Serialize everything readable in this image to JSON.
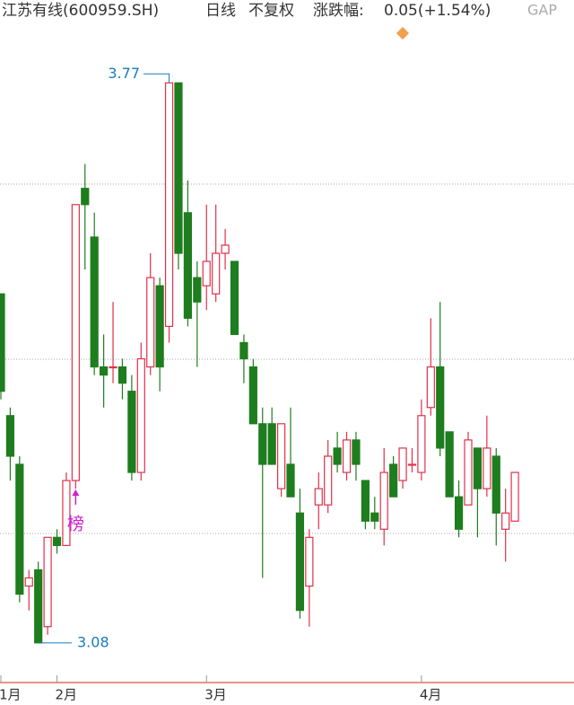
{
  "chart_data": {
    "type": "candlestick",
    "title": "江苏有线(600959.SH)",
    "period": "日线",
    "adjust": "不复权",
    "change_label": "涨跌幅:",
    "change": "0.05(+1.54%)",
    "gap_button": "GAP",
    "annotation": "榜",
    "ylim": [
      3.03,
      3.84
    ],
    "up_color": "#e0304a",
    "down_color": "#1e7d1e",
    "label_color": "#1a7abf",
    "categories": [
      "1月",
      null,
      null,
      null,
      null,
      null,
      "2月",
      null,
      null,
      null,
      null,
      null,
      null,
      null,
      null,
      null,
      null,
      null,
      null,
      null,
      null,
      null,
      "3月",
      null,
      null,
      null,
      null,
      null,
      null,
      null,
      null,
      null,
      null,
      null,
      null,
      null,
      null,
      null,
      null,
      null,
      null,
      null,
      null,
      null,
      null,
      "4月",
      null,
      null,
      null,
      null,
      null,
      null,
      null,
      null,
      null,
      null
    ],
    "open": [
      3.51,
      3.36,
      3.3,
      3.15,
      3.17,
      3.1,
      3.21,
      3.2,
      3.28,
      3.64,
      3.58,
      3.42,
      3.42,
      3.42,
      3.39,
      3.29,
      3.42,
      3.52,
      3.47,
      3.77,
      3.61,
      3.53,
      3.52,
      3.51,
      3.56,
      3.55,
      3.45,
      3.42,
      3.35,
      3.35,
      3.27,
      3.3,
      3.24,
      3.15,
      3.25,
      3.25,
      3.32,
      3.29,
      3.33,
      3.28,
      3.24,
      3.22,
      3.3,
      3.28,
      3.3,
      3.29,
      3.37,
      3.42,
      3.34,
      3.26,
      3.25,
      3.32,
      3.27,
      3.31,
      3.22,
      3.23
    ],
    "high": [
      3.51,
      3.37,
      3.31,
      3.17,
      3.18,
      3.21,
      3.22,
      3.29,
      3.62,
      3.67,
      3.61,
      3.46,
      3.5,
      3.43,
      3.41,
      3.45,
      3.56,
      3.53,
      3.77,
      3.77,
      3.65,
      3.55,
      3.62,
      3.62,
      3.59,
      3.55,
      3.46,
      3.43,
      3.37,
      3.37,
      3.35,
      3.37,
      3.27,
      3.22,
      3.29,
      3.33,
      3.34,
      3.34,
      3.34,
      3.28,
      3.26,
      3.32,
      3.31,
      3.32,
      3.32,
      3.38,
      3.48,
      3.5,
      3.34,
      3.28,
      3.34,
      3.32,
      3.36,
      3.32,
      3.27,
      3.29
    ],
    "low": [
      3.38,
      3.28,
      3.13,
      3.12,
      3.08,
      3.09,
      3.19,
      3.2,
      3.27,
      3.54,
      3.41,
      3.37,
      3.4,
      3.38,
      3.28,
      3.28,
      3.41,
      3.39,
      3.45,
      3.54,
      3.47,
      3.42,
      3.49,
      3.5,
      3.54,
      3.46,
      3.4,
      3.35,
      3.16,
      3.3,
      3.26,
      3.26,
      3.11,
      3.1,
      3.22,
      3.24,
      3.29,
      3.28,
      3.28,
      3.22,
      3.22,
      3.2,
      3.26,
      3.27,
      3.29,
      3.28,
      3.36,
      3.31,
      3.26,
      3.21,
      3.25,
      3.21,
      3.26,
      3.2,
      3.18,
      3.23
    ],
    "close": [
      3.39,
      3.31,
      3.14,
      3.16,
      3.08,
      3.21,
      3.2,
      3.28,
      3.62,
      3.62,
      3.42,
      3.41,
      3.42,
      3.4,
      3.29,
      3.43,
      3.53,
      3.42,
      3.77,
      3.56,
      3.48,
      3.5,
      3.55,
      3.56,
      3.57,
      3.46,
      3.43,
      3.35,
      3.3,
      3.3,
      3.35,
      3.26,
      3.12,
      3.21,
      3.27,
      3.31,
      3.3,
      3.33,
      3.3,
      3.23,
      3.23,
      3.29,
      3.26,
      3.32,
      3.3,
      3.36,
      3.42,
      3.32,
      3.26,
      3.22,
      3.33,
      3.27,
      3.32,
      3.24,
      3.24,
      3.29
    ]
  }
}
